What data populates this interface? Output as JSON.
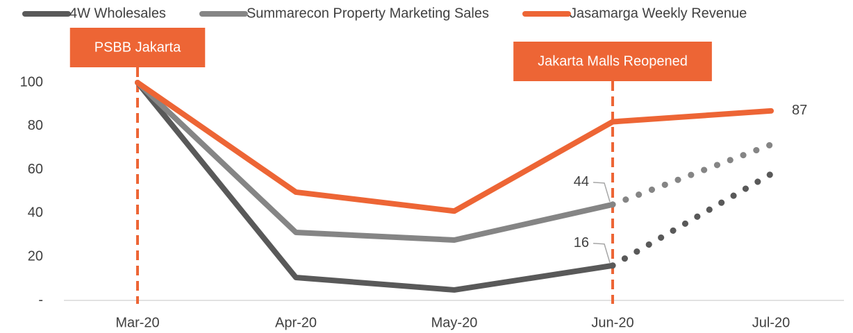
{
  "chart_data": {
    "type": "line",
    "categories": [
      "Mar-20",
      "Apr-20",
      "May-20",
      "Jun-20",
      "Jul-20"
    ],
    "series": [
      {
        "name": "4W Wholesales",
        "color": "#595959",
        "values": [
          100,
          10.5,
          4.8,
          16,
          58
        ],
        "dotted_after": "Jun-20",
        "labeled": [
          3
        ]
      },
      {
        "name": "Summarecon Property Marketing Sales",
        "color": "#858585",
        "values": [
          100,
          31.2,
          27.7,
          44,
          71.5
        ],
        "dotted_after": "Jun-20",
        "labeled": [
          3
        ]
      },
      {
        "name": "Jasamarga Weekly Revenue",
        "color": "#ED6535",
        "values": [
          100,
          49.7,
          41,
          82,
          87
        ],
        "labeled": [
          4
        ]
      }
    ],
    "annotations": [
      {
        "text": "PSBB Jakarta",
        "category": "Mar-20"
      },
      {
        "text": "Jakarta Malls Reopened",
        "category": "Jun-20"
      }
    ],
    "ylim": [
      0,
      100
    ],
    "yticks": [
      {
        "value": 0,
        "label": "-"
      },
      20,
      40,
      60,
      80,
      100
    ],
    "grid": false,
    "legend": "top"
  }
}
